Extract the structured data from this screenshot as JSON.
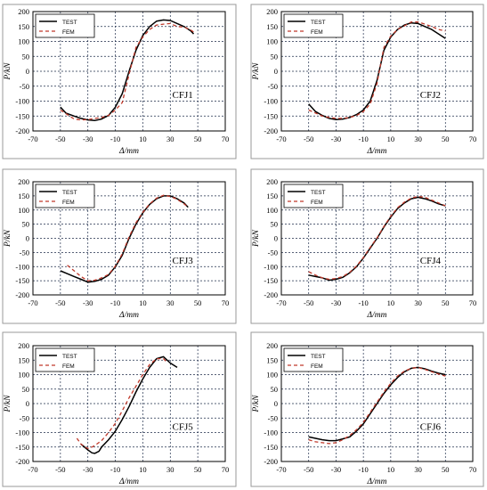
{
  "chart_data": [
    {
      "type": "line",
      "label": "CFJ1",
      "xlabel": "Δ/mm",
      "ylabel": "P/kN",
      "xlim": [
        -70,
        70
      ],
      "ylim": [
        -200,
        200
      ],
      "xticks": [
        -70,
        -50,
        -30,
        -10,
        10,
        30,
        50,
        70
      ],
      "yticks": [
        200,
        150,
        100,
        50,
        0,
        -50,
        -100,
        -150,
        -200
      ],
      "grid": true,
      "legend": "top-left",
      "series": [
        {
          "name": "TEST",
          "color": "#000000",
          "dash": "solid",
          "x": [
            -50,
            -46,
            -40,
            -35,
            -30,
            -25,
            -20,
            -15,
            -10,
            -5,
            0,
            5,
            10,
            15,
            20,
            25,
            30,
            35,
            40,
            45,
            47
          ],
          "y": [
            -120,
            -140,
            -150,
            -158,
            -163,
            -165,
            -160,
            -148,
            -120,
            -75,
            0,
            70,
            120,
            150,
            168,
            172,
            170,
            160,
            150,
            135,
            125
          ]
        },
        {
          "name": "FEM",
          "color": "#c0392b",
          "dash": "dashed",
          "x": [
            -50,
            -45,
            -40,
            -35,
            -30,
            -25,
            -20,
            -15,
            -10,
            -5,
            0,
            5,
            10,
            15,
            20,
            25,
            30,
            35,
            40,
            45,
            48
          ],
          "y": [
            -130,
            -145,
            -160,
            -163,
            -162,
            -158,
            -155,
            -148,
            -130,
            -105,
            -10,
            80,
            115,
            140,
            155,
            158,
            160,
            150,
            148,
            138,
            128
          ]
        }
      ]
    },
    {
      "type": "line",
      "label": "CFJ2",
      "xlabel": "Δ/mm",
      "ylabel": "P/kN",
      "xlim": [
        -70,
        70
      ],
      "ylim": [
        -200,
        200
      ],
      "xticks": [
        -70,
        -50,
        -30,
        -10,
        10,
        30,
        50,
        70
      ],
      "yticks": [
        200,
        150,
        100,
        50,
        0,
        -50,
        -100,
        -150,
        -200
      ],
      "grid": true,
      "legend": "top-left",
      "series": [
        {
          "name": "TEST",
          "color": "#000000",
          "dash": "solid",
          "x": [
            -50,
            -45,
            -40,
            -35,
            -30,
            -25,
            -20,
            -15,
            -10,
            -5,
            0,
            5,
            10,
            15,
            20,
            25,
            30,
            35,
            40,
            45,
            50
          ],
          "y": [
            -110,
            -135,
            -148,
            -158,
            -162,
            -160,
            -155,
            -145,
            -130,
            -100,
            -30,
            70,
            115,
            140,
            155,
            162,
            160,
            150,
            140,
            125,
            110
          ]
        },
        {
          "name": "FEM",
          "color": "#c0392b",
          "dash": "dashed",
          "x": [
            -50,
            -45,
            -40,
            -35,
            -30,
            -25,
            -20,
            -15,
            -10,
            -5,
            0,
            5,
            10,
            15,
            20,
            25,
            30,
            35,
            40,
            45,
            50
          ],
          "y": [
            -130,
            -140,
            -150,
            -155,
            -158,
            -158,
            -155,
            -148,
            -135,
            -110,
            -40,
            80,
            118,
            140,
            152,
            165,
            165,
            158,
            150,
            140,
            135
          ]
        }
      ]
    },
    {
      "type": "line",
      "label": "CFJ3",
      "xlabel": "Δ/mm",
      "ylabel": "P/kN",
      "xlim": [
        -70,
        70
      ],
      "ylim": [
        -200,
        200
      ],
      "xticks": [
        -70,
        -50,
        -30,
        -10,
        10,
        30,
        50,
        70
      ],
      "yticks": [
        200,
        150,
        100,
        50,
        0,
        -50,
        -100,
        -150,
        -200
      ],
      "grid": true,
      "legend": "top-left",
      "series": [
        {
          "name": "TEST",
          "color": "#000000",
          "dash": "solid",
          "x": [
            -50,
            -45,
            -40,
            -35,
            -30,
            -25,
            -20,
            -15,
            -10,
            -5,
            0,
            5,
            10,
            15,
            20,
            25,
            30,
            35,
            40,
            43
          ],
          "y": [
            -115,
            -125,
            -135,
            -145,
            -155,
            -152,
            -145,
            -130,
            -100,
            -60,
            0,
            50,
            90,
            120,
            140,
            150,
            150,
            140,
            125,
            110
          ]
        },
        {
          "name": "FEM",
          "color": "#c0392b",
          "dash": "dashed",
          "x": [
            -45,
            -40,
            -35,
            -30,
            -25,
            -20,
            -15,
            -10,
            -5,
            0,
            5,
            10,
            15,
            20,
            25,
            30,
            35,
            40,
            43
          ],
          "y": [
            -95,
            -115,
            -135,
            -150,
            -148,
            -140,
            -128,
            -98,
            -55,
            5,
            55,
            92,
            122,
            142,
            152,
            148,
            138,
            122,
            110
          ]
        }
      ]
    },
    {
      "type": "line",
      "label": "CFJ4",
      "xlabel": "Δ/mm",
      "ylabel": "P/kN",
      "xlim": [
        -70,
        70
      ],
      "ylim": [
        -200,
        200
      ],
      "xticks": [
        -70,
        -50,
        -30,
        -10,
        10,
        30,
        50,
        70
      ],
      "yticks": [
        200,
        150,
        100,
        50,
        0,
        -50,
        -100,
        -150,
        -200
      ],
      "grid": true,
      "legend": "top-left",
      "series": [
        {
          "name": "TEST",
          "color": "#000000",
          "dash": "solid",
          "x": [
            -50,
            -45,
            -40,
            -35,
            -30,
            -25,
            -20,
            -15,
            -10,
            -5,
            0,
            5,
            10,
            15,
            20,
            25,
            30,
            35,
            40,
            45,
            50
          ],
          "y": [
            -130,
            -135,
            -140,
            -148,
            -145,
            -138,
            -122,
            -100,
            -70,
            -35,
            0,
            40,
            75,
            105,
            125,
            140,
            145,
            140,
            132,
            122,
            115
          ]
        },
        {
          "name": "FEM",
          "color": "#c0392b",
          "dash": "dashed",
          "x": [
            -50,
            -45,
            -40,
            -35,
            -30,
            -25,
            -20,
            -15,
            -10,
            -5,
            0,
            5,
            10,
            15,
            20,
            25,
            30,
            35,
            40,
            45,
            50
          ],
          "y": [
            -118,
            -130,
            -140,
            -145,
            -142,
            -135,
            -120,
            -98,
            -68,
            -32,
            2,
            42,
            78,
            108,
            128,
            142,
            148,
            145,
            135,
            125,
            115
          ]
        }
      ]
    },
    {
      "type": "line",
      "label": "CFJ5",
      "xlabel": "Δ/mm",
      "ylabel": "P/kN",
      "xlim": [
        -70,
        70
      ],
      "ylim": [
        -200,
        200
      ],
      "xticks": [
        -70,
        -50,
        -30,
        -10,
        10,
        30,
        50,
        70
      ],
      "yticks": [
        200,
        150,
        100,
        50,
        0,
        -50,
        -100,
        -150,
        -200
      ],
      "grid": true,
      "legend": "top-left",
      "series": [
        {
          "name": "TEST",
          "color": "#000000",
          "dash": "solid",
          "x": [
            -35,
            -30,
            -27,
            -25,
            -22,
            -20,
            -15,
            -10,
            -5,
            0,
            5,
            10,
            15,
            20,
            25,
            30,
            35
          ],
          "y": [
            -140,
            -160,
            -170,
            -172,
            -165,
            -150,
            -125,
            -95,
            -55,
            -10,
            40,
            85,
            125,
            155,
            162,
            140,
            125
          ]
        },
        {
          "name": "FEM",
          "color": "#c0392b",
          "dash": "dashed",
          "x": [
            -38,
            -35,
            -32,
            -30,
            -27,
            -25,
            -20,
            -15,
            -10,
            -5,
            0,
            5,
            10,
            15,
            20,
            25,
            28
          ],
          "y": [
            -120,
            -140,
            -150,
            -155,
            -150,
            -145,
            -128,
            -100,
            -68,
            -25,
            20,
            60,
            100,
            135,
            155,
            155,
            140
          ]
        }
      ]
    },
    {
      "type": "line",
      "label": "CFJ6",
      "xlabel": "Δ/mm",
      "ylabel": "P/kN",
      "xlim": [
        -70,
        70
      ],
      "ylim": [
        -200,
        200
      ],
      "xticks": [
        -70,
        -50,
        -30,
        -10,
        10,
        30,
        50,
        70
      ],
      "yticks": [
        200,
        150,
        100,
        50,
        0,
        -50,
        -100,
        -150,
        -200
      ],
      "grid": true,
      "legend": "top-left",
      "series": [
        {
          "name": "TEST",
          "color": "#000000",
          "dash": "solid",
          "x": [
            -50,
            -45,
            -40,
            -35,
            -30,
            -25,
            -20,
            -15,
            -10,
            -5,
            0,
            5,
            10,
            15,
            20,
            25,
            30,
            35,
            40,
            45,
            50
          ],
          "y": [
            -115,
            -120,
            -125,
            -128,
            -128,
            -122,
            -115,
            -95,
            -70,
            -35,
            0,
            35,
            65,
            90,
            110,
            122,
            125,
            120,
            112,
            105,
            100
          ]
        },
        {
          "name": "FEM",
          "color": "#c0392b",
          "dash": "dashed",
          "x": [
            -50,
            -45,
            -40,
            -35,
            -30,
            -25,
            -20,
            -15,
            -10,
            -5,
            0,
            5,
            10,
            15,
            20,
            25,
            30,
            35,
            40,
            45,
            50
          ],
          "y": [
            -125,
            -132,
            -135,
            -138,
            -135,
            -125,
            -110,
            -90,
            -65,
            -30,
            5,
            40,
            70,
            95,
            112,
            122,
            125,
            118,
            110,
            102,
            95
          ]
        }
      ]
    }
  ]
}
